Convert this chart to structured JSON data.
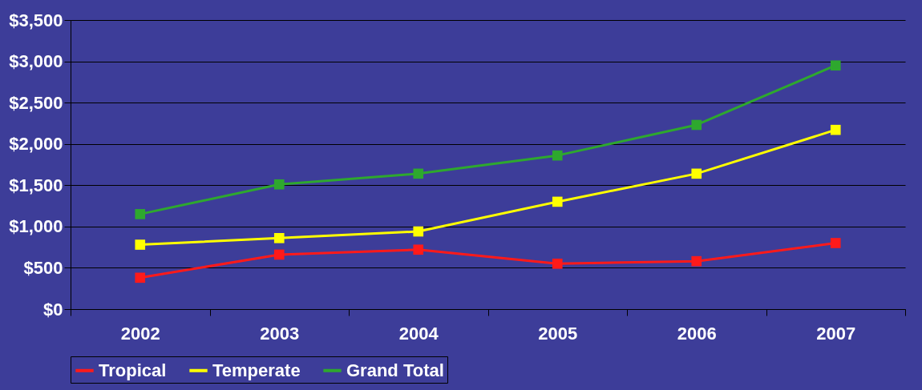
{
  "chart_data": {
    "type": "line",
    "categories": [
      "2002",
      "2003",
      "2004",
      "2005",
      "2006",
      "2007"
    ],
    "series": [
      {
        "name": "Tropical",
        "color": "#ff1a1a",
        "values": [
          380,
          660,
          720,
          550,
          580,
          800
        ]
      },
      {
        "name": "Temperate",
        "color": "#ffff00",
        "values": [
          780,
          860,
          940,
          1300,
          1640,
          2170
        ]
      },
      {
        "name": "Grand Total",
        "color": "#2ea82e",
        "values": [
          1150,
          1510,
          1640,
          1860,
          2230,
          2950
        ]
      }
    ],
    "ylim": [
      0,
      3500
    ],
    "yticks": [
      {
        "value": 0,
        "label": "$0"
      },
      {
        "value": 500,
        "label": "$500"
      },
      {
        "value": 1000,
        "label": "$1,000"
      },
      {
        "value": 1500,
        "label": "$1,500"
      },
      {
        "value": 2000,
        "label": "$2,000"
      },
      {
        "value": 2500,
        "label": "$2,500"
      },
      {
        "value": 3000,
        "label": "$3,000"
      },
      {
        "value": 3500,
        "label": "$3,500"
      }
    ],
    "grid": "y",
    "legend": "bottom",
    "marker": "square",
    "line_style": "solid"
  }
}
